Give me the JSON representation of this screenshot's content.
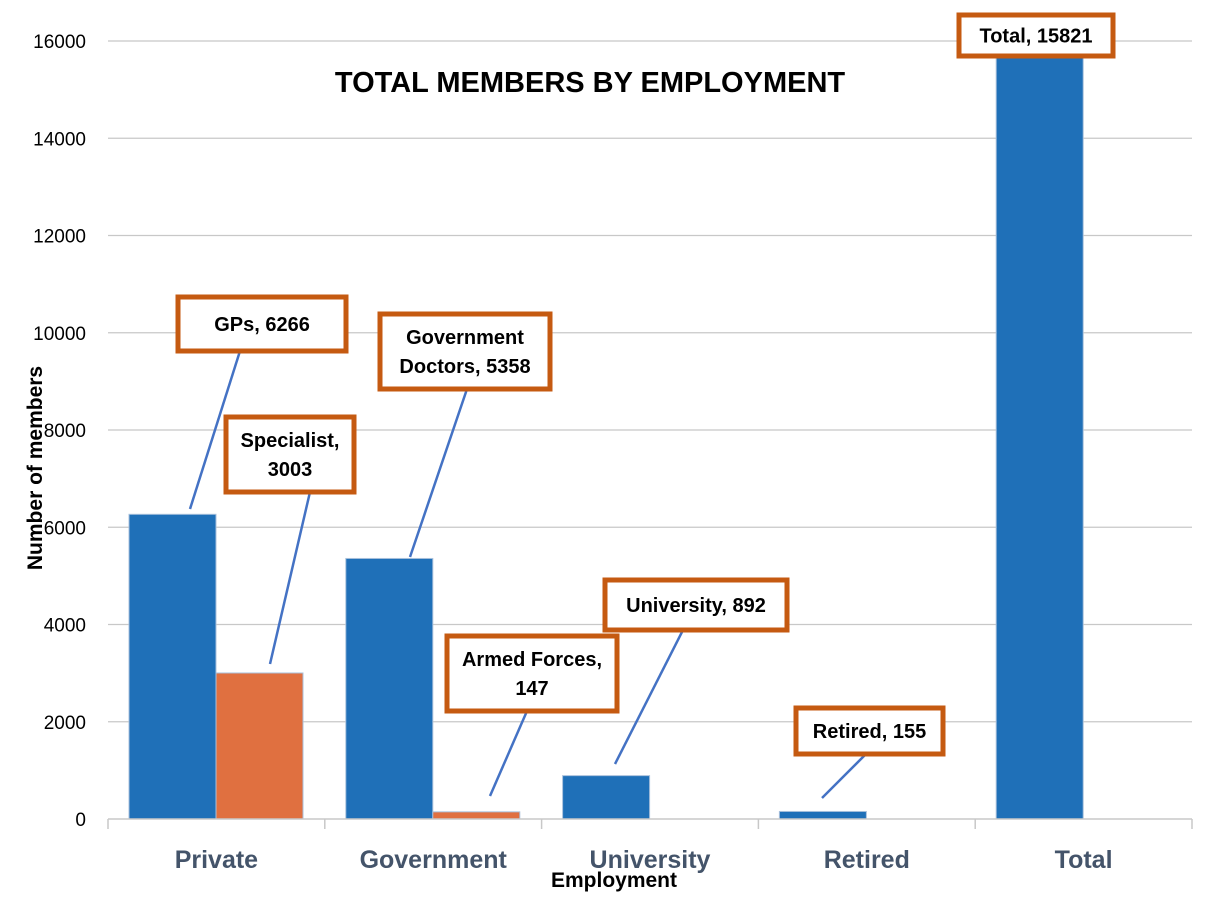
{
  "chart_data": {
    "type": "bar",
    "title": "TOTAL MEMBERS BY EMPLOYMENT",
    "xlabel": "Employment",
    "ylabel": "Number of members",
    "categories": [
      "Private",
      "Government",
      "University",
      "Retired",
      "Total"
    ],
    "ylim": [
      0,
      16000
    ],
    "yticks": [
      0,
      2000,
      4000,
      6000,
      8000,
      10000,
      12000,
      14000,
      16000
    ],
    "grid": true,
    "legend": "none",
    "series": [
      {
        "color": "#1f70b8",
        "values": [
          6266,
          5358,
          892,
          155,
          15821
        ]
      },
      {
        "color": "#e07040",
        "values": [
          3003,
          147,
          null,
          null,
          null
        ]
      }
    ],
    "annotations": [
      {
        "lines": [
          "GPs, 6266"
        ],
        "series": 0,
        "category": 0
      },
      {
        "lines": [
          "Specialist,",
          "3003"
        ],
        "series": 1,
        "category": 0
      },
      {
        "lines": [
          "Government",
          "Doctors, 5358"
        ],
        "series": 0,
        "category": 1
      },
      {
        "lines": [
          "Armed Forces,",
          "147"
        ],
        "series": 1,
        "category": 1
      },
      {
        "lines": [
          "University, 892"
        ],
        "series": 0,
        "category": 2
      },
      {
        "lines": [
          "Retired, 155"
        ],
        "series": 0,
        "category": 3
      },
      {
        "lines": [
          "Total, 15821"
        ],
        "series": 0,
        "category": 4
      }
    ]
  },
  "colors": {
    "gridline": "#c8c8c8",
    "callout_border": "#c55a11",
    "leader_line": "#4472c4",
    "category_text": "#44546a"
  }
}
